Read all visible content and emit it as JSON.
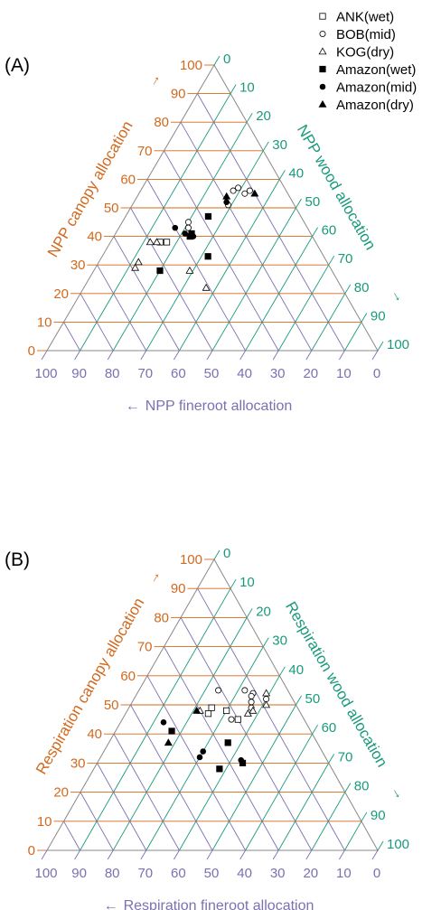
{
  "colors": {
    "canopy": "#d2691e",
    "wood": "#1a9a7c",
    "fineroot": "#7b70b2",
    "marker": "#000000",
    "frame": "#888888"
  },
  "legend": {
    "items": [
      {
        "label": "ANK(wet)",
        "marker": "square-open"
      },
      {
        "label": "BOB(mid)",
        "marker": "circle-open"
      },
      {
        "label": "KOG(dry)",
        "marker": "triangle-open"
      },
      {
        "label": "Amazon(wet)",
        "marker": "square-filled"
      },
      {
        "label": "Amazon(mid)",
        "marker": "circle-filled"
      },
      {
        "label": "Amazon(dry)",
        "marker": "triangle-filled"
      }
    ]
  },
  "chart_data": [
    {
      "type": "scatter",
      "subtype": "ternary",
      "panel_label": "(A)",
      "axes": {
        "left": {
          "label": "NPP canopy allocation",
          "arrow": "→",
          "ticks": [
            "0",
            "10",
            "20",
            "30",
            "40",
            "50",
            "60",
            "70",
            "80",
            "90",
            "100"
          ]
        },
        "right": {
          "label": "NPP wood allocation",
          "arrow": "→",
          "ticks": [
            "0",
            "10",
            "20",
            "30",
            "40",
            "50",
            "60",
            "70",
            "80",
            "90",
            "100"
          ]
        },
        "bottom": {
          "label": "NPP fineroot allocation",
          "arrow": "←",
          "ticks": [
            "100",
            "90",
            "80",
            "70",
            "60",
            "50",
            "40",
            "30",
            "20",
            "10",
            "0"
          ]
        }
      },
      "series": [
        {
          "name": "ANK(wet)",
          "marker": "square-open",
          "points": [
            {
              "canopy": 38,
              "wood": 17
            },
            {
              "canopy": 38,
              "wood": 15
            }
          ]
        },
        {
          "name": "BOB(mid)",
          "marker": "circle-open",
          "points": [
            {
              "canopy": 56,
              "wood": 33
            },
            {
              "canopy": 51,
              "wood": 29
            },
            {
              "canopy": 55,
              "wood": 32
            },
            {
              "canopy": 56,
              "wood": 28
            },
            {
              "canopy": 57,
              "wood": 29
            },
            {
              "canopy": 43,
              "wood": 21
            },
            {
              "canopy": 45,
              "wood": 20
            }
          ]
        },
        {
          "name": "KOG(dry)",
          "marker": "triangle-open",
          "points": [
            {
              "canopy": 38,
              "wood": 12
            },
            {
              "canopy": 31,
              "wood": 12
            },
            {
              "canopy": 29,
              "wood": 12
            },
            {
              "canopy": 38,
              "wood": 14
            },
            {
              "canopy": 28,
              "wood": 29
            },
            {
              "canopy": 22,
              "wood": 37
            }
          ]
        },
        {
          "name": "Amazon(wet)",
          "marker": "square-filled",
          "points": [
            {
              "canopy": 47,
              "wood": 25
            },
            {
              "canopy": 40,
              "wood": 23
            },
            {
              "canopy": 41,
              "wood": 23
            },
            {
              "canopy": 28,
              "wood": 20
            },
            {
              "canopy": 33,
              "wood": 32
            }
          ]
        },
        {
          "name": "Amazon(mid)",
          "marker": "circle-filled",
          "points": [
            {
              "canopy": 43,
              "wood": 17
            },
            {
              "canopy": 41,
              "wood": 21
            },
            {
              "canopy": 40,
              "wood": 24
            },
            {
              "canopy": 52,
              "wood": 28
            }
          ]
        },
        {
          "name": "Amazon(dry)",
          "marker": "triangle-filled",
          "points": [
            {
              "canopy": 54,
              "wood": 27
            },
            {
              "canopy": 55,
              "wood": 35
            }
          ]
        }
      ]
    },
    {
      "type": "scatter",
      "subtype": "ternary",
      "panel_label": "(B)",
      "axes": {
        "left": {
          "label": "Respiration canopy allocation",
          "arrow": "→",
          "ticks": [
            "0",
            "10",
            "20",
            "30",
            "40",
            "50",
            "60",
            "70",
            "80",
            "90",
            "100"
          ]
        },
        "right": {
          "label": "Respiration wood allocation",
          "arrow": "→",
          "ticks": [
            "0",
            "10",
            "20",
            "30",
            "40",
            "50",
            "60",
            "70",
            "80",
            "90",
            "100"
          ]
        },
        "bottom": {
          "label": "Respiration fineroot allocation",
          "arrow": "←",
          "ticks": [
            "100",
            "90",
            "80",
            "70",
            "60",
            "50",
            "40",
            "30",
            "20",
            "10",
            "0"
          ]
        }
      },
      "series": [
        {
          "name": "ANK(wet)",
          "marker": "square-open",
          "points": [
            {
              "canopy": 45,
              "wood": 35
            },
            {
              "canopy": 48,
              "wood": 30
            },
            {
              "canopy": 49,
              "wood": 25
            },
            {
              "canopy": 47,
              "wood": 25
            }
          ]
        },
        {
          "name": "BOB(mid)",
          "marker": "circle-open",
          "points": [
            {
              "canopy": 55,
              "wood": 24
            },
            {
              "canopy": 55,
              "wood": 32
            },
            {
              "canopy": 54,
              "wood": 35
            },
            {
              "canopy": 51,
              "wood": 36
            },
            {
              "canopy": 53,
              "wood": 35
            },
            {
              "canopy": 49,
              "wood": 37
            },
            {
              "canopy": 45,
              "wood": 33
            },
            {
              "canopy": 52,
              "wood": 40
            }
          ]
        },
        {
          "name": "KOG(dry)",
          "marker": "triangle-open",
          "points": [
            {
              "canopy": 54,
              "wood": 39
            },
            {
              "canopy": 50,
              "wood": 41
            },
            {
              "canopy": 48,
              "wood": 38
            },
            {
              "canopy": 47,
              "wood": 37
            },
            {
              "canopy": 48,
              "wood": 22
            }
          ]
        },
        {
          "name": "Amazon(wet)",
          "marker": "square-filled",
          "points": [
            {
              "canopy": 41,
              "wood": 17
            },
            {
              "canopy": 37,
              "wood": 36
            },
            {
              "canopy": 28,
              "wood": 38
            },
            {
              "canopy": 30,
              "wood": 44
            }
          ]
        },
        {
          "name": "Amazon(mid)",
          "marker": "circle-filled",
          "points": [
            {
              "canopy": 44,
              "wood": 13
            },
            {
              "canopy": 32,
              "wood": 30
            },
            {
              "canopy": 34,
              "wood": 30
            },
            {
              "canopy": 31,
              "wood": 43
            }
          ]
        },
        {
          "name": "Amazon(dry)",
          "marker": "triangle-filled",
          "points": [
            {
              "canopy": 48,
              "wood": 21
            },
            {
              "canopy": 37,
              "wood": 18
            }
          ]
        }
      ]
    }
  ]
}
